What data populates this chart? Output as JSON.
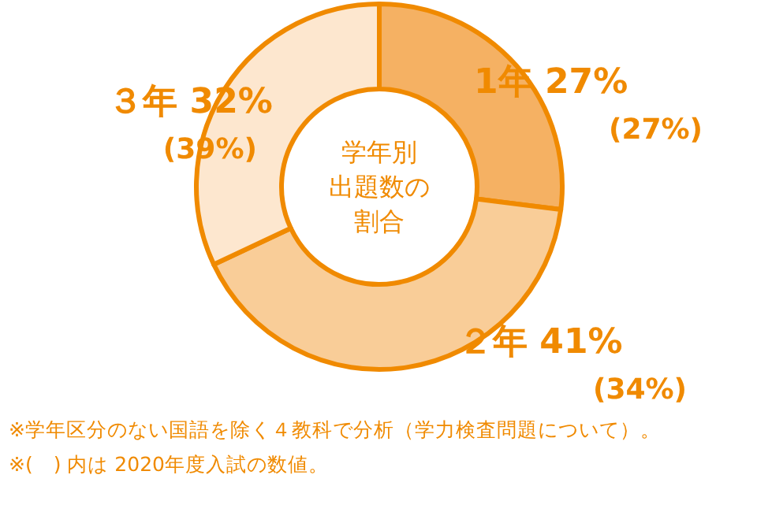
{
  "chart_data": {
    "type": "donut",
    "title": "学年別出題数の割合",
    "categories": [
      "1年",
      "２年",
      "３年"
    ],
    "values": [
      27,
      41,
      32
    ],
    "value_labels": [
      "27%",
      "41%",
      "32%"
    ],
    "colors": [
      "#f5b163",
      "#f9cd98",
      "#fde7cf"
    ],
    "annotations": [
      "(27%)",
      "(34%)",
      "(39%)",
      "※学年区分のない国語を除く４教科で分析（学力検査問題について）。",
      "※(　) 内は 2020年度入試の数値。"
    ]
  }
}
